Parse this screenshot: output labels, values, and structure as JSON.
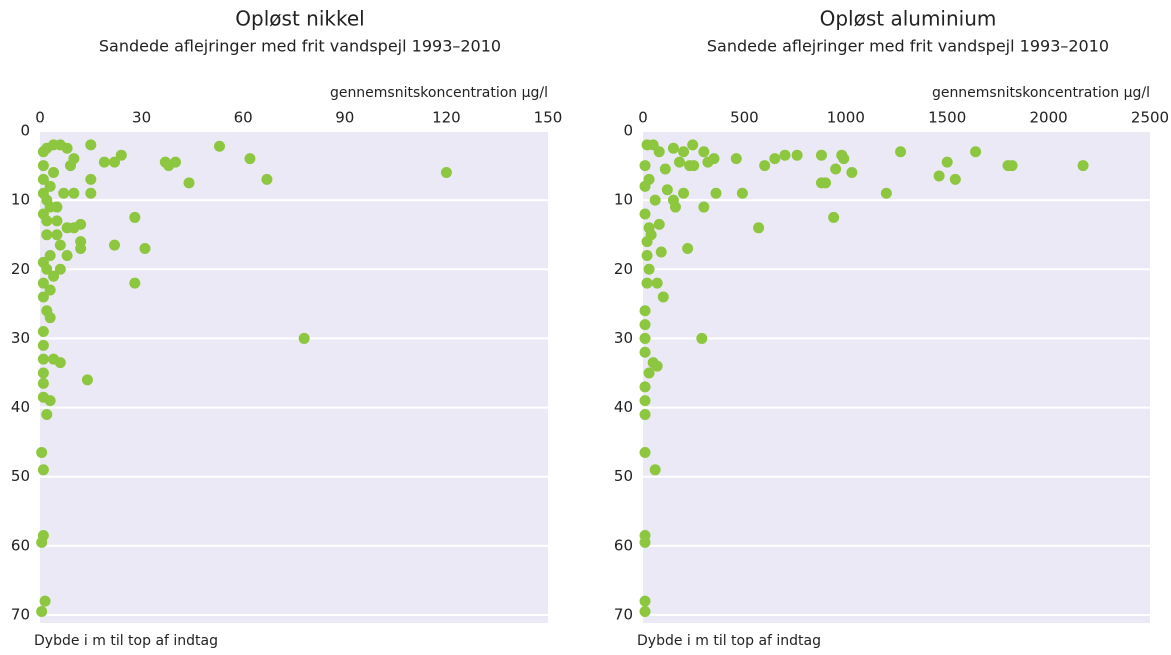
{
  "chart_data": [
    {
      "type": "scatter",
      "title": "Opløst nikkel",
      "subtitle": "Sandede aflejringer med frit vandspejl 1993–2010",
      "x_label": "gennemsnitskoncentration µg/l",
      "y_label": "Dybde i m til top af indtag",
      "color": "#8dc63f",
      "xlim": [
        0,
        150
      ],
      "xticks": [
        0,
        30,
        60,
        90,
        120,
        150
      ],
      "ylim": [
        0,
        70
      ],
      "yticks": [
        0,
        10,
        20,
        30,
        40,
        50,
        60,
        70
      ],
      "y_inverted": true,
      "x_axis_position": "top",
      "grid": true,
      "x": [
        15,
        53,
        62,
        24,
        19,
        22,
        37,
        38,
        40,
        44,
        67,
        120,
        15,
        15,
        10,
        7,
        4,
        6,
        8,
        10,
        2,
        1,
        1,
        1,
        1,
        2,
        3,
        1,
        2,
        5,
        8,
        12,
        12,
        12,
        10,
        6,
        8,
        6,
        3,
        1,
        1,
        1,
        2,
        1,
        3,
        28,
        22,
        31,
        28,
        78,
        14,
        1,
        1,
        6,
        4,
        1,
        1,
        1,
        3,
        2,
        0.5,
        1,
        1,
        0.5,
        1.5,
        0.5,
        3,
        5,
        2,
        3,
        4,
        5,
        9,
        2,
        4
      ],
      "y": [
        2,
        2.2,
        4,
        3.5,
        4.5,
        4.5,
        4.5,
        5,
        4.5,
        7.5,
        7,
        6,
        7,
        9,
        9,
        9,
        2,
        2,
        2.5,
        4,
        2.5,
        3,
        5,
        7,
        9,
        10,
        11,
        12,
        13,
        13,
        14,
        13.5,
        16,
        17,
        14,
        16.5,
        18,
        20,
        18,
        19,
        22,
        24,
        26,
        29,
        27,
        12.5,
        16.5,
        17,
        22,
        30,
        36,
        31,
        33,
        33.5,
        33,
        35,
        36.5,
        38.5,
        39,
        41,
        46.5,
        49,
        58.5,
        59.5,
        68,
        69.5,
        23,
        15,
        15,
        8,
        6,
        11,
        5,
        20,
        21
      ]
    },
    {
      "type": "scatter",
      "title": "Opløst aluminium",
      "subtitle": "Sandede aflejringer med frit vandspejl 1993–2010",
      "x_label": "gennemsnitskoncentration µg/l",
      "y_label": "Dybde i m til top af indtag",
      "color": "#8dc63f",
      "xlim": [
        0,
        2500
      ],
      "xticks": [
        0,
        500,
        1000,
        1500,
        2000,
        2500
      ],
      "ylim": [
        0,
        70
      ],
      "yticks": [
        0,
        10,
        20,
        30,
        40,
        50,
        60,
        70
      ],
      "y_inverted": true,
      "x_axis_position": "top",
      "grid": true,
      "x": [
        245,
        150,
        200,
        1270,
        1640,
        880,
        700,
        760,
        980,
        990,
        650,
        460,
        350,
        300,
        320,
        1500,
        1800,
        1820,
        2170,
        600,
        950,
        1030,
        1460,
        1540,
        900,
        880,
        490,
        360,
        300,
        1200,
        940,
        570,
        220,
        290,
        60,
        160,
        150,
        120,
        110,
        180,
        230,
        250,
        200,
        80,
        20,
        50,
        10,
        10,
        10,
        30,
        80,
        20,
        90,
        30,
        70,
        100,
        10,
        10,
        10,
        10,
        50,
        70,
        30,
        10,
        10,
        10,
        10,
        10,
        10,
        10,
        10,
        20,
        40,
        60,
        30,
        20
      ],
      "y": [
        2,
        2.5,
        3,
        3,
        3,
        3.5,
        3.5,
        3.5,
        3.5,
        4,
        4,
        4,
        4,
        3,
        4.5,
        4.5,
        5,
        5,
        5,
        5,
        5.5,
        6,
        6.5,
        7,
        7.5,
        7.5,
        9,
        9,
        11,
        9,
        12.5,
        14,
        17,
        30,
        49,
        11,
        10,
        8.5,
        5.5,
        4.5,
        5,
        5,
        9,
        3,
        2,
        2,
        5,
        8,
        12,
        14,
        13.5,
        18,
        17.5,
        20,
        22,
        24,
        26,
        28,
        30,
        32,
        33.5,
        34,
        35,
        37,
        39,
        41,
        46.5,
        58.5,
        59.5,
        68,
        69.5,
        22,
        15,
        10,
        7,
        16
      ]
    }
  ]
}
